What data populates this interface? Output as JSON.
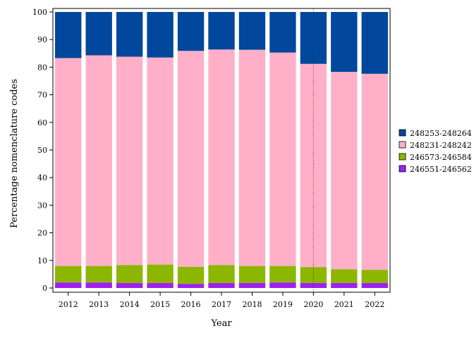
{
  "chart_data": {
    "type": "bar",
    "stacked": true,
    "title": "",
    "xlabel": "Year",
    "ylabel": "Percentage nomenclature codes",
    "ylim": [
      0,
      100
    ],
    "yticks": [
      0,
      10,
      20,
      30,
      40,
      50,
      60,
      70,
      80,
      90,
      100
    ],
    "grid": false,
    "legend_position": "right",
    "reference_line": {
      "x": "2020",
      "style": "dotted"
    },
    "categories": [
      "2012",
      "2013",
      "2014",
      "2015",
      "2016",
      "2017",
      "2018",
      "2019",
      "2020",
      "2021",
      "2022"
    ],
    "series": [
      {
        "name": "246551-246562",
        "color": "#a020f0",
        "values": [
          2.0,
          2.0,
          1.8,
          1.8,
          1.5,
          1.8,
          1.8,
          2.0,
          1.8,
          1.8,
          1.8
        ]
      },
      {
        "name": "246573-246584",
        "color": "#8db600",
        "values": [
          6.0,
          6.0,
          6.5,
          6.7,
          6.2,
          6.5,
          6.2,
          6.0,
          5.8,
          5.0,
          4.8
        ]
      },
      {
        "name": "248231-248242",
        "color": "#ffb0c8",
        "values": [
          75.3,
          76.3,
          75.5,
          75.0,
          78.2,
          78.1,
          78.3,
          77.3,
          73.6,
          71.5,
          71.0
        ]
      },
      {
        "name": "248253-248264",
        "color": "#00479d",
        "values": [
          16.7,
          15.7,
          16.2,
          16.5,
          14.1,
          13.6,
          13.7,
          14.7,
          18.8,
          21.7,
          22.4
        ]
      }
    ],
    "legend_order": [
      "248253-248264",
      "248231-248242",
      "246573-246584",
      "246551-246562"
    ]
  }
}
